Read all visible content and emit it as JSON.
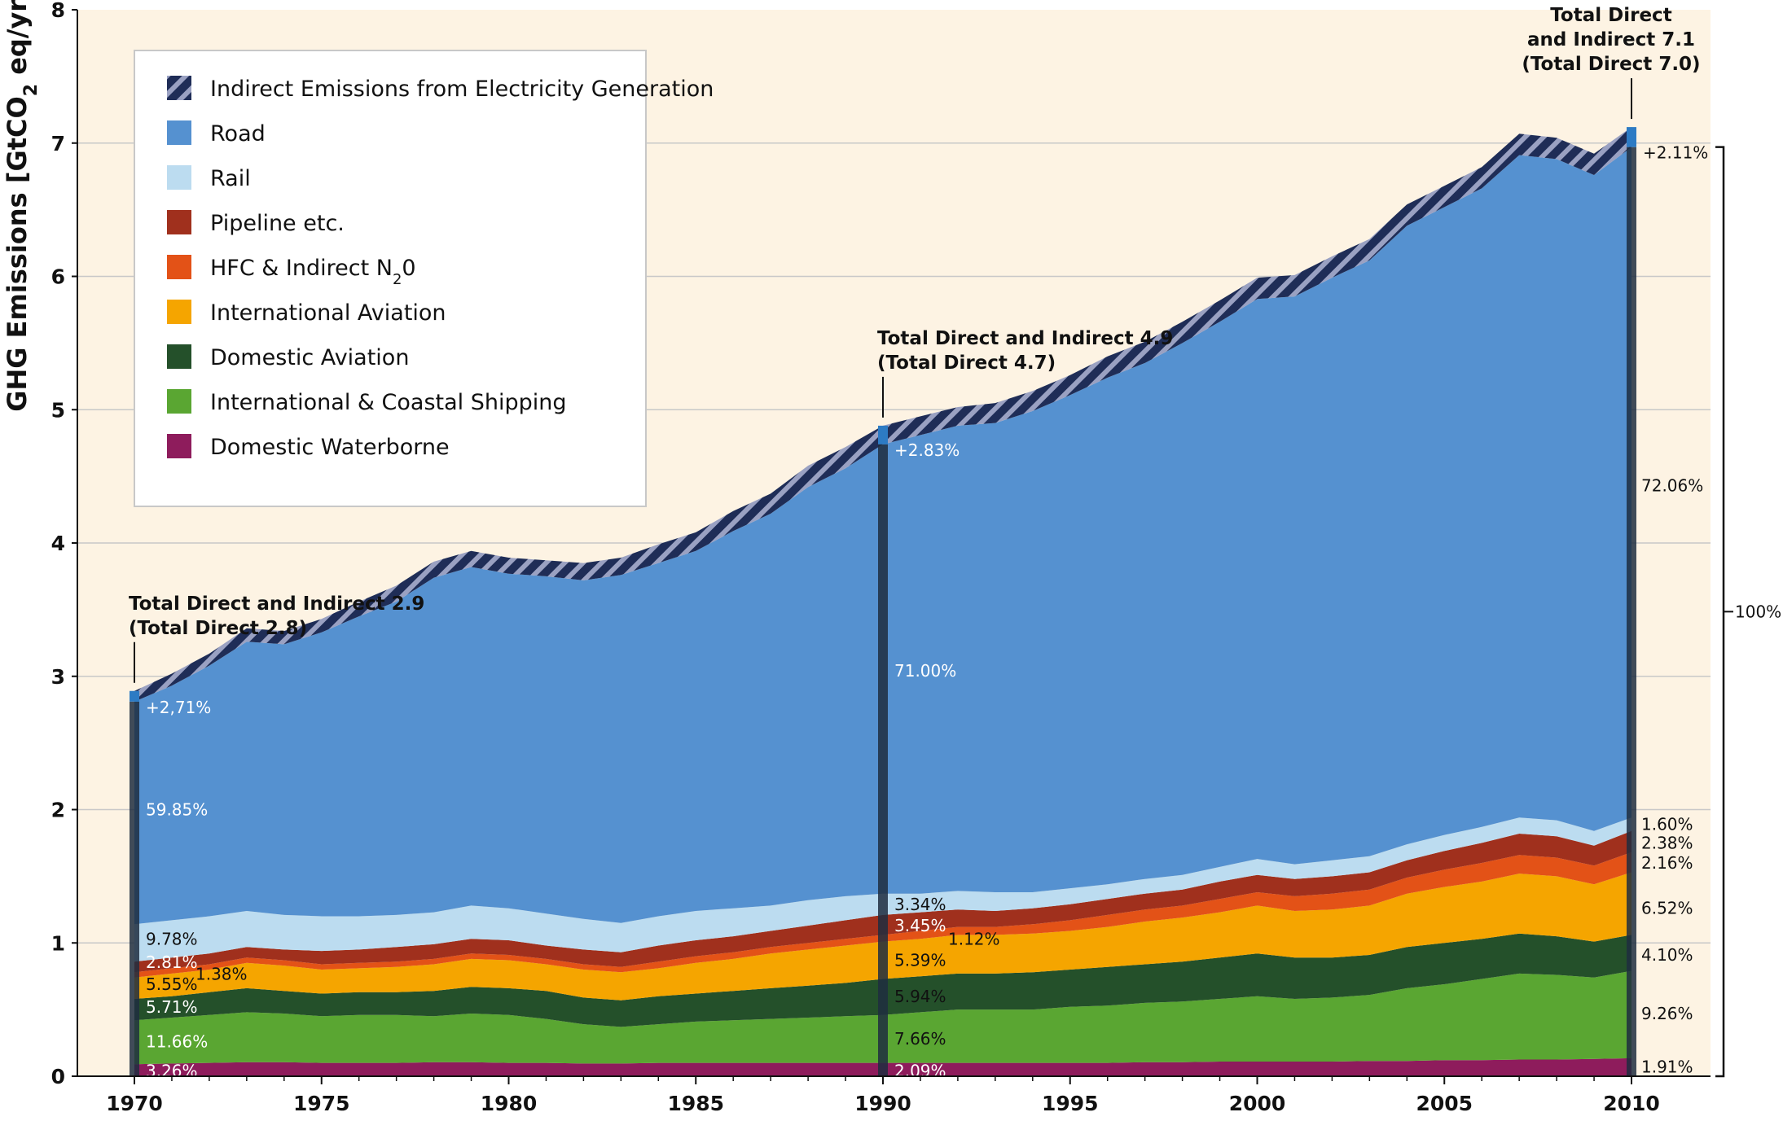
{
  "chart_data": {
    "type": "area",
    "ylabel": "GHG Emissions [GtCO",
    "ylabel_sub": "2",
    "ylabel_tail": " eq/yr]",
    "xlim": [
      1970,
      2010
    ],
    "ylim": [
      0,
      8
    ],
    "x_ticks": [
      1970,
      1975,
      1980,
      1985,
      1990,
      1995,
      2000,
      2005,
      2010
    ],
    "y_ticks": [
      0,
      1,
      2,
      3,
      4,
      5,
      6,
      7,
      8
    ],
    "grid": "horizontal",
    "legend_position": "top-left",
    "colors": {
      "background": "#fdf3e3",
      "indirect": "#1f2d57",
      "indirect_stripe": "#9aa1c2",
      "road": "#5591d0",
      "rail": "#bcdcf0",
      "pipeline": "#a0301d",
      "hfc": "#e35217",
      "intl_aviation": "#f5a500",
      "dom_aviation": "#24502a",
      "shipping": "#5aa632",
      "dom_waterborne": "#8e1c5c",
      "bar": "#1f2d3f"
    },
    "legend": [
      {
        "key": "indirect",
        "label": "Indirect Emissions from Electricity Generation",
        "sub": "",
        "tail": ""
      },
      {
        "key": "road",
        "label": "Road",
        "sub": "",
        "tail": ""
      },
      {
        "key": "rail",
        "label": "Rail",
        "sub": "",
        "tail": ""
      },
      {
        "key": "pipeline",
        "label": "Pipeline etc.",
        "sub": "",
        "tail": ""
      },
      {
        "key": "hfc",
        "label": "HFC & Indirect N",
        "sub": "2",
        "tail": "0"
      },
      {
        "key": "intl_aviation",
        "label": "International Aviation",
        "sub": "",
        "tail": ""
      },
      {
        "key": "dom_aviation",
        "label": "Domestic Aviation",
        "sub": "",
        "tail": ""
      },
      {
        "key": "shipping",
        "label": "International & Coastal Shipping",
        "sub": "",
        "tail": ""
      },
      {
        "key": "dom_waterborne",
        "label": "Domestic Waterborne",
        "sub": "",
        "tail": ""
      }
    ],
    "x": [
      1970,
      1971,
      1972,
      1973,
      1974,
      1975,
      1976,
      1977,
      1978,
      1979,
      1980,
      1981,
      1982,
      1983,
      1984,
      1985,
      1986,
      1987,
      1988,
      1989,
      1990,
      1991,
      1992,
      1993,
      1994,
      1995,
      1996,
      1997,
      1998,
      1999,
      2000,
      2001,
      2002,
      2003,
      2004,
      2005,
      2006,
      2007,
      2008,
      2009,
      2010
    ],
    "boundaries": {
      "dom_waterborne": [
        0.09,
        0.095,
        0.1,
        0.105,
        0.105,
        0.1,
        0.1,
        0.1,
        0.105,
        0.105,
        0.1,
        0.1,
        0.095,
        0.095,
        0.1,
        0.1,
        0.1,
        0.1,
        0.1,
        0.1,
        0.1,
        0.1,
        0.1,
        0.1,
        0.1,
        0.1,
        0.1,
        0.105,
        0.105,
        0.11,
        0.11,
        0.11,
        0.11,
        0.115,
        0.115,
        0.12,
        0.12,
        0.125,
        0.125,
        0.13,
        0.135
      ],
      "shipping": [
        0.42,
        0.44,
        0.46,
        0.48,
        0.47,
        0.45,
        0.46,
        0.46,
        0.45,
        0.47,
        0.46,
        0.43,
        0.39,
        0.37,
        0.39,
        0.41,
        0.42,
        0.43,
        0.44,
        0.45,
        0.46,
        0.48,
        0.5,
        0.5,
        0.5,
        0.52,
        0.53,
        0.55,
        0.56,
        0.58,
        0.6,
        0.58,
        0.59,
        0.61,
        0.66,
        0.69,
        0.73,
        0.77,
        0.76,
        0.74,
        0.79
      ],
      "dom_aviation": [
        0.58,
        0.6,
        0.63,
        0.66,
        0.64,
        0.62,
        0.63,
        0.63,
        0.64,
        0.67,
        0.66,
        0.64,
        0.59,
        0.57,
        0.6,
        0.62,
        0.64,
        0.66,
        0.68,
        0.7,
        0.73,
        0.75,
        0.77,
        0.77,
        0.78,
        0.8,
        0.82,
        0.84,
        0.86,
        0.89,
        0.92,
        0.89,
        0.89,
        0.91,
        0.97,
        1.0,
        1.03,
        1.07,
        1.05,
        1.01,
        1.06
      ],
      "intl_aviation": [
        0.74,
        0.77,
        0.8,
        0.85,
        0.83,
        0.8,
        0.81,
        0.82,
        0.84,
        0.88,
        0.87,
        0.84,
        0.8,
        0.78,
        0.81,
        0.85,
        0.88,
        0.92,
        0.95,
        0.98,
        1.01,
        1.03,
        1.06,
        1.06,
        1.07,
        1.09,
        1.12,
        1.16,
        1.19,
        1.23,
        1.28,
        1.24,
        1.25,
        1.28,
        1.37,
        1.42,
        1.46,
        1.52,
        1.5,
        1.44,
        1.53
      ],
      "hfc": [
        0.78,
        0.81,
        0.84,
        0.89,
        0.87,
        0.84,
        0.85,
        0.86,
        0.88,
        0.92,
        0.91,
        0.88,
        0.84,
        0.82,
        0.86,
        0.9,
        0.93,
        0.97,
        1.0,
        1.03,
        1.06,
        1.09,
        1.12,
        1.12,
        1.14,
        1.17,
        1.21,
        1.25,
        1.28,
        1.33,
        1.38,
        1.35,
        1.37,
        1.4,
        1.49,
        1.55,
        1.6,
        1.66,
        1.64,
        1.58,
        1.68
      ],
      "pipeline": [
        0.86,
        0.89,
        0.92,
        0.97,
        0.95,
        0.94,
        0.95,
        0.97,
        0.99,
        1.03,
        1.02,
        0.98,
        0.95,
        0.93,
        0.98,
        1.02,
        1.05,
        1.09,
        1.13,
        1.17,
        1.21,
        1.23,
        1.25,
        1.24,
        1.26,
        1.29,
        1.33,
        1.37,
        1.4,
        1.46,
        1.51,
        1.48,
        1.5,
        1.53,
        1.62,
        1.69,
        1.75,
        1.82,
        1.8,
        1.73,
        1.84
      ],
      "rail": [
        1.14,
        1.17,
        1.2,
        1.24,
        1.21,
        1.2,
        1.2,
        1.21,
        1.23,
        1.28,
        1.26,
        1.22,
        1.18,
        1.15,
        1.2,
        1.24,
        1.26,
        1.28,
        1.32,
        1.35,
        1.37,
        1.37,
        1.39,
        1.38,
        1.38,
        1.41,
        1.44,
        1.48,
        1.51,
        1.57,
        1.63,
        1.59,
        1.62,
        1.65,
        1.74,
        1.81,
        1.87,
        1.94,
        1.92,
        1.84,
        1.94
      ],
      "road": [
        2.81,
        2.93,
        3.08,
        3.26,
        3.24,
        3.33,
        3.45,
        3.56,
        3.74,
        3.82,
        3.77,
        3.75,
        3.72,
        3.76,
        3.85,
        3.94,
        4.09,
        4.22,
        4.42,
        4.56,
        4.74,
        4.81,
        4.88,
        4.9,
        4.99,
        5.11,
        5.24,
        5.35,
        5.5,
        5.66,
        5.83,
        5.85,
        5.99,
        6.12,
        6.38,
        6.52,
        6.66,
        6.91,
        6.88,
        6.76,
        6.97
      ],
      "indirect": [
        2.89,
        3.02,
        3.17,
        3.36,
        3.34,
        3.43,
        3.56,
        3.68,
        3.86,
        3.94,
        3.89,
        3.87,
        3.85,
        3.89,
        3.99,
        4.08,
        4.24,
        4.37,
        4.58,
        4.72,
        4.88,
        4.95,
        5.02,
        5.05,
        5.14,
        5.26,
        5.4,
        5.51,
        5.66,
        5.82,
        5.99,
        6.01,
        6.15,
        6.28,
        6.54,
        6.68,
        6.82,
        7.07,
        7.04,
        6.92,
        7.12
      ]
    },
    "annotations": [
      {
        "year": 1970,
        "line1": "Total Direct and Indirect 2.9",
        "line2": "(Total Direct 2.8)",
        "total": 2.89,
        "direct": 2.81
      },
      {
        "year": 1990,
        "line1": "Total Direct and Indirect 4.9",
        "line2": "(Total Direct 4.7)",
        "total": 4.88,
        "direct": 4.74
      },
      {
        "year": 2010,
        "line1": "Total Direct",
        "line2": "and Indirect 7.1",
        "line3": "(Total Direct 7.0)",
        "total": 7.12,
        "direct": 6.97
      }
    ],
    "bars": {
      "1970": {
        "indirect_label": "+2,71%",
        "labels": [
          {
            "text": "59.85%",
            "y": 2.0,
            "color": "#ffffff",
            "dx": 14
          },
          {
            "text": "9.78%",
            "y": 1.03,
            "color": "#111111",
            "dx": 14
          },
          {
            "text": "2.81%",
            "y": 0.855,
            "color": "#ffffff",
            "dx": 14
          },
          {
            "text": "1.38%",
            "y": 0.765,
            "color": "#111111",
            "dx": 75
          },
          {
            "text": "5.55%",
            "y": 0.69,
            "color": "#111111",
            "dx": 14
          },
          {
            "text": "5.71%",
            "y": 0.52,
            "color": "#ffffff",
            "dx": 14
          },
          {
            "text": "11.66%",
            "y": 0.26,
            "color": "#ffffff",
            "dx": 14
          },
          {
            "text": "3.26%",
            "y": 0.04,
            "color": "#ffffff",
            "dx": 14
          }
        ]
      },
      "1990": {
        "indirect_label": "+2.83%",
        "labels": [
          {
            "text": "71.00%",
            "y": 3.04,
            "color": "#ffffff",
            "dx": 14
          },
          {
            "text": "3.34%",
            "y": 1.29,
            "color": "#111111",
            "dx": 14
          },
          {
            "text": "3.45%",
            "y": 1.13,
            "color": "#ffffff",
            "dx": 14
          },
          {
            "text": "1.12%",
            "y": 1.03,
            "color": "#111111",
            "dx": 80
          },
          {
            "text": "5.39%",
            "y": 0.87,
            "color": "#111111",
            "dx": 14
          },
          {
            "text": "5.94%",
            "y": 0.6,
            "color": "#111111",
            "dx": 14
          },
          {
            "text": "7.66%",
            "y": 0.28,
            "color": "#111111",
            "dx": 14
          },
          {
            "text": "2.09%",
            "y": 0.04,
            "color": "#ffffff",
            "dx": 14
          }
        ]
      },
      "2010": {
        "indirect_label": "+2.11%",
        "labels": [
          {
            "text": "72.06%",
            "y": 4.43,
            "color": "#111111",
            "dx": 12
          },
          {
            "text": "1.60%",
            "y": 1.89,
            "color": "#111111",
            "dx": 12
          },
          {
            "text": "2.38%",
            "y": 1.75,
            "color": "#111111",
            "dx": 12
          },
          {
            "text": "2.16%",
            "y": 1.6,
            "color": "#111111",
            "dx": 12
          },
          {
            "text": "6.52%",
            "y": 1.26,
            "color": "#111111",
            "dx": 12
          },
          {
            "text": "4.10%",
            "y": 0.91,
            "color": "#111111",
            "dx": 12
          },
          {
            "text": "9.26%",
            "y": 0.47,
            "color": "#111111",
            "dx": 12
          },
          {
            "text": "1.91%",
            "y": 0.07,
            "color": "#111111",
            "dx": 12
          }
        ]
      }
    },
    "brace_label": "100%"
  }
}
